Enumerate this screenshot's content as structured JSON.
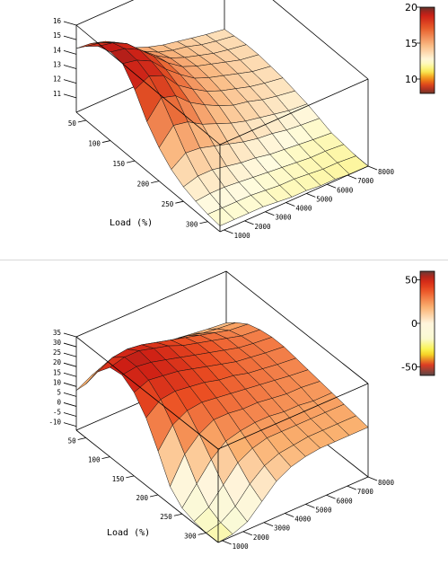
{
  "chart_data": [
    {
      "type": "surface",
      "xlabel": "Load (%)",
      "x_ticks": [
        50,
        100,
        150,
        200,
        250,
        300
      ],
      "y_ticks": [
        1000,
        2000,
        3000,
        4000,
        5000,
        6000,
        7000,
        8000
      ],
      "z_ticks": [
        11,
        12,
        13,
        14,
        15,
        16
      ],
      "zlim": [
        10,
        16
      ],
      "colorbar": {
        "ticks": [
          10,
          15,
          20
        ],
        "range": [
          8,
          20
        ]
      },
      "loads": [
        30,
        50,
        75,
        100,
        125,
        150,
        175,
        200,
        225,
        250,
        275,
        300,
        325
      ],
      "rpms": [
        800,
        1500,
        2200,
        2900,
        3600,
        4300,
        5000,
        5700,
        6400,
        7100,
        8000
      ],
      "z": [
        [
          14.4,
          14.3,
          14.0,
          13.2,
          12.7,
          12.3,
          12.0,
          11.8,
          11.6,
          11.4,
          11.2
        ],
        [
          15.1,
          14.9,
          14.5,
          13.6,
          13.0,
          12.5,
          12.2,
          12.0,
          11.7,
          11.5,
          11.3
        ],
        [
          15.8,
          15.6,
          15.1,
          14.2,
          13.4,
          12.8,
          12.4,
          12.1,
          11.8,
          11.6,
          11.4
        ],
        [
          16.1,
          15.9,
          15.4,
          14.5,
          13.6,
          12.9,
          12.5,
          12.2,
          11.9,
          11.6,
          11.4
        ],
        [
          16.0,
          15.8,
          15.3,
          14.3,
          13.5,
          12.8,
          12.4,
          12.1,
          11.8,
          11.5,
          11.3
        ],
        [
          14.9,
          15.4,
          15.0,
          13.9,
          13.2,
          12.6,
          12.2,
          11.9,
          11.6,
          11.4,
          11.2
        ],
        [
          13.4,
          14.6,
          14.3,
          13.4,
          12.8,
          12.3,
          11.9,
          11.7,
          11.4,
          11.2,
          11.0
        ],
        [
          12.3,
          13.4,
          13.2,
          12.6,
          12.2,
          11.8,
          11.5,
          11.3,
          11.1,
          10.9,
          10.8
        ],
        [
          11.5,
          12.2,
          12.1,
          11.8,
          11.5,
          11.2,
          11.0,
          10.9,
          10.7,
          10.6,
          10.5
        ],
        [
          11.0,
          11.3,
          11.3,
          11.1,
          10.9,
          10.8,
          10.6,
          10.5,
          10.4,
          10.3,
          10.2
        ],
        [
          10.7,
          10.8,
          10.8,
          10.7,
          10.6,
          10.5,
          10.4,
          10.3,
          10.2,
          10.2,
          10.1
        ],
        [
          10.5,
          10.5,
          10.5,
          10.5,
          10.4,
          10.3,
          10.3,
          10.2,
          10.1,
          10.1,
          10.0
        ],
        [
          10.4,
          10.4,
          10.4,
          10.4,
          10.3,
          10.2,
          10.2,
          10.1,
          10.1,
          10.0,
          10.0
        ]
      ]
    },
    {
      "type": "surface",
      "xlabel": "Load (%)",
      "x_ticks": [
        50,
        100,
        150,
        200,
        250,
        300
      ],
      "y_ticks": [
        1000,
        2000,
        3000,
        4000,
        5000,
        6000,
        7000,
        8000
      ],
      "z_ticks": [
        -10,
        -5,
        0,
        5,
        10,
        15,
        20,
        25,
        30,
        35
      ],
      "zlim": [
        -12,
        35
      ],
      "colorbar": {
        "ticks": [
          -50,
          0,
          50
        ],
        "range": [
          -60,
          60
        ]
      },
      "loads": [
        30,
        50,
        75,
        100,
        125,
        150,
        175,
        200,
        225,
        250,
        275,
        300,
        325
      ],
      "rpms": [
        800,
        1500,
        2200,
        2900,
        3600,
        4300,
        5000,
        5700,
        6400,
        7100,
        8000
      ],
      "z": [
        [
          8,
          12,
          14,
          15,
          15,
          14,
          13,
          12,
          11,
          10,
          9
        ],
        [
          15,
          20,
          22,
          22,
          21,
          20,
          18,
          17,
          15,
          14,
          13
        ],
        [
          26,
          30,
          31,
          30,
          28,
          26,
          24,
          22,
          20,
          18,
          17
        ],
        [
          33,
          35,
          35,
          33,
          31,
          28,
          26,
          24,
          22,
          20,
          19
        ],
        [
          34,
          35,
          34,
          32,
          30,
          28,
          26,
          24,
          22,
          21,
          20
        ],
        [
          30,
          33,
          32,
          31,
          29,
          27,
          25,
          23,
          22,
          21,
          20
        ],
        [
          22,
          28,
          29,
          28,
          27,
          25,
          24,
          22,
          21,
          20,
          19
        ],
        [
          10,
          20,
          24,
          25,
          24,
          23,
          22,
          21,
          20,
          19,
          18
        ],
        [
          -3,
          10,
          17,
          21,
          21,
          20,
          20,
          19,
          18,
          18,
          17
        ],
        [
          -9,
          0,
          9,
          15,
          17,
          18,
          18,
          17,
          17,
          16,
          16
        ],
        [
          -11,
          -7,
          1,
          9,
          13,
          15,
          15,
          15,
          15,
          15,
          15
        ],
        [
          -12,
          -10,
          -5,
          3,
          9,
          12,
          13,
          14,
          14,
          14,
          14
        ],
        [
          -12,
          -11,
          -8,
          -1,
          6,
          10,
          12,
          13,
          13,
          13,
          13
        ]
      ]
    }
  ]
}
